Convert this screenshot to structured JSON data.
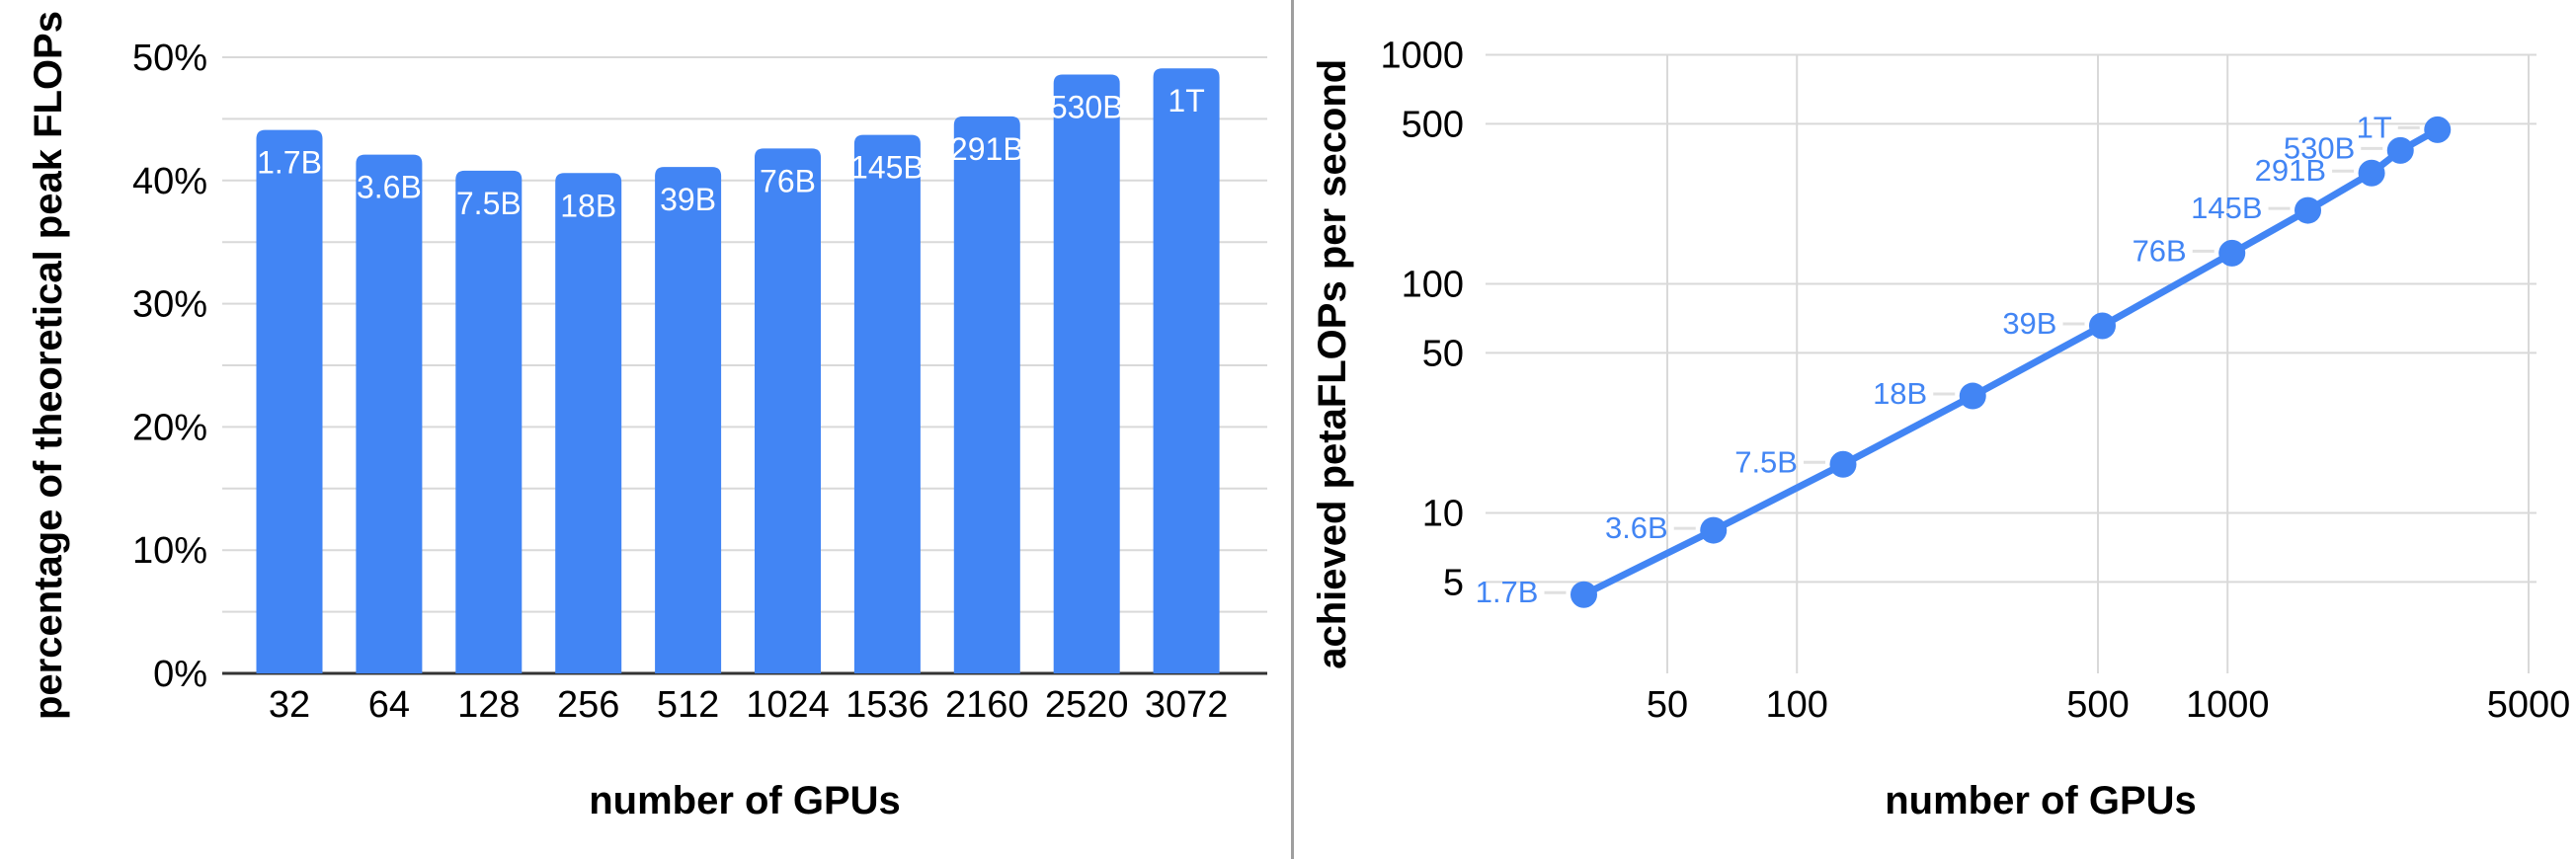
{
  "figure": {
    "description": "Two-panel scaling figure for large language model training throughput",
    "panel_count": 2
  },
  "colors": {
    "series_blue": "#4285F4",
    "bar_label_text": "#ffffff",
    "point_label_text": "#4285F4",
    "gridline": "#d9d9d9",
    "leader_dash": "#e0e0e0",
    "axis_line": "#333333",
    "text": "#000000",
    "divider": "#9e9e9e",
    "background": "#ffffff"
  },
  "chart_data": [
    {
      "type": "bar",
      "title": "",
      "categories": [
        "32",
        "64",
        "128",
        "256",
        "512",
        "1024",
        "1536",
        "2160",
        "2520",
        "3072"
      ],
      "values": [
        44.1,
        42.1,
        40.8,
        40.6,
        41.1,
        42.6,
        43.7,
        45.2,
        48.6,
        49.1
      ],
      "bar_labels": [
        "1.7B",
        "3.6B",
        "7.5B",
        "18B",
        "39B",
        "76B",
        "145B",
        "291B",
        "530B",
        "1T"
      ],
      "xlabel": "number of GPUs",
      "ylabel": "percentage of theoretical peak FLOPs",
      "ylim": [
        0,
        50
      ],
      "ytick_labels": [
        "0%",
        "10%",
        "20%",
        "30%",
        "40%",
        "50%"
      ],
      "ytick_label_values": [
        0,
        10,
        20,
        30,
        40,
        50
      ],
      "gridline_step_percent": 5,
      "grid": true,
      "legend": "none"
    },
    {
      "type": "line",
      "title": "",
      "x": [
        32,
        64,
        128,
        256,
        512,
        1024,
        1536,
        2160,
        2520,
        3072
      ],
      "values": [
        4.4,
        8.4,
        16.3,
        32.4,
        65.6,
        136.2,
        209.3,
        304.7,
        382.3,
        470.9
      ],
      "point_labels": [
        "1.7B",
        "3.6B",
        "7.5B",
        "18B",
        "39B",
        "76B",
        "145B",
        "291B",
        "530B",
        "1T"
      ],
      "xlabel": "number of GPUs",
      "ylabel": "achieved petaFLOPs per second",
      "xscale": "log",
      "yscale": "log",
      "xticks": [
        50,
        100,
        500,
        1000,
        5000
      ],
      "yticks": [
        1000,
        500,
        100,
        50,
        10,
        5
      ],
      "xlim": [
        19,
        5200
      ],
      "ylim": [
        2,
        1000
      ],
      "grid": true,
      "legend": "none",
      "marker": "circle"
    }
  ]
}
